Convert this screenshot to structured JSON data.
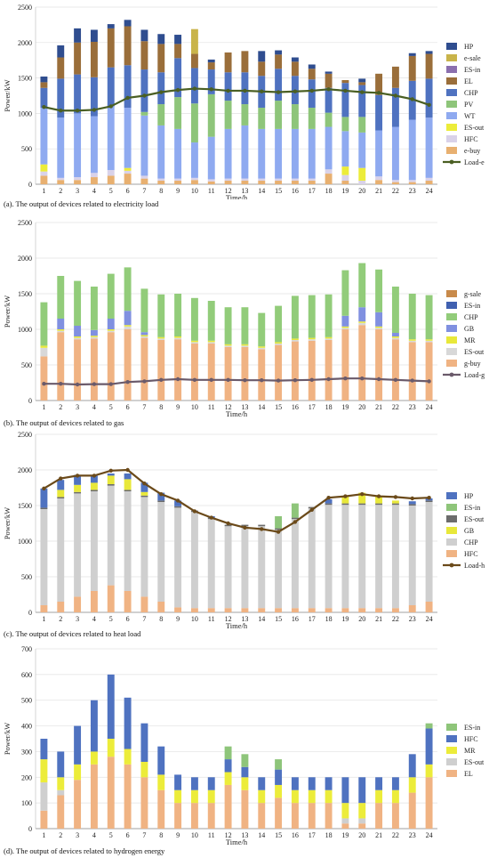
{
  "chart_data": [
    {
      "type": "bar",
      "stacked": true,
      "caption": "(a). The output of devices related to electricity load",
      "xlabel": "Time/h",
      "ylabel": "Power/kW",
      "ylim": [
        0,
        2500
      ],
      "yticks": [
        0,
        500,
        1000,
        1500,
        2000,
        2500
      ],
      "categories": [
        "1",
        "2",
        "3",
        "4",
        "5",
        "6",
        "7",
        "8",
        "9",
        "10",
        "11",
        "12",
        "13",
        "14",
        "15",
        "16",
        "17",
        "18",
        "19",
        "20",
        "21",
        "22",
        "23",
        "24"
      ],
      "legend_position": "right",
      "legend": [
        "HP",
        "e-sale",
        "ES-in",
        "EL",
        "CHP",
        "PV",
        "WT",
        "ES-out",
        "HFC",
        "e-buy",
        "Load-e"
      ],
      "series": [
        {
          "name": "e-buy",
          "color": "#e8b070",
          "values": [
            120,
            60,
            60,
            100,
            120,
            150,
            80,
            50,
            50,
            60,
            40,
            50,
            50,
            50,
            50,
            50,
            50,
            150,
            50,
            0,
            60,
            30,
            30,
            50
          ]
        },
        {
          "name": "HFC",
          "color": "#d9d2e9",
          "values": [
            60,
            30,
            40,
            60,
            80,
            40,
            40,
            30,
            30,
            30,
            30,
            30,
            30,
            30,
            30,
            30,
            30,
            60,
            80,
            50,
            50,
            30,
            30,
            40
          ]
        },
        {
          "name": "ES-out",
          "color": "#ecec3a",
          "values": [
            100,
            0,
            0,
            0,
            0,
            40,
            0,
            0,
            0,
            0,
            0,
            0,
            0,
            0,
            0,
            0,
            0,
            0,
            120,
            180,
            0,
            0,
            0,
            0
          ]
        },
        {
          "name": "WT",
          "color": "#8faaf0",
          "values": [
            800,
            850,
            900,
            800,
            900,
            850,
            850,
            750,
            700,
            500,
            600,
            700,
            750,
            700,
            700,
            700,
            700,
            600,
            500,
            500,
            650,
            750,
            850,
            850
          ]
        },
        {
          "name": "PV",
          "color": "#8ec57a",
          "values": [
            0,
            0,
            0,
            0,
            0,
            0,
            50,
            300,
            450,
            550,
            600,
            400,
            300,
            300,
            400,
            350,
            300,
            200,
            200,
            220,
            0,
            0,
            0,
            0
          ]
        },
        {
          "name": "CHP",
          "color": "#4f72c0",
          "values": [
            280,
            550,
            550,
            550,
            550,
            600,
            600,
            450,
            550,
            500,
            350,
            400,
            450,
            450,
            450,
            400,
            400,
            350,
            480,
            450,
            500,
            550,
            550,
            550
          ]
        },
        {
          "name": "EL",
          "color": "#9a6e3a",
          "values": [
            80,
            300,
            450,
            500,
            550,
            550,
            400,
            400,
            200,
            200,
            100,
            280,
            300,
            200,
            200,
            200,
            150,
            200,
            40,
            40,
            300,
            300,
            350,
            350
          ]
        },
        {
          "name": "ES-in",
          "color": "#8b6fae",
          "values": [
            0,
            0,
            0,
            0,
            0,
            0,
            0,
            0,
            0,
            0,
            0,
            0,
            0,
            0,
            0,
            0,
            0,
            0,
            0,
            0,
            0,
            0,
            0,
            0
          ]
        },
        {
          "name": "e-sale",
          "color": "#c9b44a",
          "values": [
            0,
            0,
            0,
            0,
            0,
            0,
            0,
            0,
            0,
            350,
            0,
            0,
            0,
            0,
            0,
            0,
            0,
            0,
            0,
            0,
            0,
            0,
            0,
            0
          ]
        },
        {
          "name": "HP",
          "color": "#2f4d8f",
          "values": [
            80,
            170,
            200,
            170,
            60,
            90,
            160,
            140,
            130,
            0,
            40,
            0,
            0,
            150,
            60,
            60,
            60,
            30,
            0,
            50,
            0,
            0,
            40,
            40
          ]
        }
      ],
      "line": {
        "name": "Load-e",
        "color": "#4a5f23",
        "values": [
          1090,
          1040,
          1040,
          1050,
          1100,
          1220,
          1250,
          1300,
          1330,
          1350,
          1340,
          1320,
          1320,
          1310,
          1300,
          1310,
          1320,
          1340,
          1320,
          1300,
          1290,
          1250,
          1200,
          1120
        ]
      }
    },
    {
      "type": "bar",
      "stacked": true,
      "caption": "(b). The output of devices related to gas",
      "xlabel": "Time/h",
      "ylabel": "Power/kW",
      "ylim": [
        0,
        2500
      ],
      "yticks": [
        0,
        500,
        1000,
        1500,
        2000,
        2500
      ],
      "categories": [
        "1",
        "2",
        "3",
        "4",
        "5",
        "6",
        "7",
        "8",
        "9",
        "10",
        "11",
        "12",
        "13",
        "14",
        "15",
        "16",
        "17",
        "18",
        "19",
        "20",
        "21",
        "22",
        "23",
        "24"
      ],
      "legend_position": "right",
      "legend": [
        "g-sale",
        "ES-in",
        "CHP",
        "GB",
        "MR",
        "ES-out",
        "g-buy",
        "Load-g"
      ],
      "series": [
        {
          "name": "g-buy",
          "color": "#f0b383",
          "values": [
            620,
            960,
            860,
            870,
            960,
            1000,
            880,
            850,
            860,
            800,
            800,
            750,
            750,
            720,
            780,
            830,
            840,
            850,
            1000,
            1060,
            1000,
            860,
            820,
            820
          ]
        },
        {
          "name": "ES-out",
          "color": "#d8d8d8",
          "values": [
            120,
            20,
            20,
            20,
            20,
            40,
            20,
            20,
            20,
            20,
            20,
            20,
            20,
            20,
            20,
            20,
            20,
            20,
            20,
            30,
            20,
            20,
            20,
            20
          ]
        },
        {
          "name": "MR",
          "color": "#e8e83a",
          "values": [
            30,
            20,
            20,
            20,
            20,
            20,
            20,
            20,
            20,
            20,
            20,
            20,
            20,
            20,
            20,
            20,
            20,
            20,
            20,
            20,
            20,
            20,
            20,
            20
          ]
        },
        {
          "name": "GB",
          "color": "#8090e0",
          "values": [
            0,
            150,
            150,
            80,
            150,
            200,
            40,
            0,
            0,
            0,
            0,
            0,
            0,
            0,
            0,
            0,
            0,
            0,
            150,
            200,
            200,
            50,
            0,
            0
          ]
        },
        {
          "name": "CHP",
          "color": "#92cc7a",
          "values": [
            610,
            600,
            630,
            610,
            630,
            610,
            610,
            600,
            600,
            600,
            560,
            520,
            520,
            470,
            510,
            600,
            600,
            600,
            640,
            620,
            600,
            650,
            640,
            620
          ]
        },
        {
          "name": "ES-in",
          "color": "#4060b0",
          "values": [
            0,
            0,
            0,
            0,
            0,
            0,
            0,
            0,
            0,
            0,
            0,
            0,
            0,
            0,
            0,
            0,
            0,
            0,
            0,
            0,
            0,
            0,
            0,
            0
          ]
        },
        {
          "name": "g-sale",
          "color": "#c88a4a",
          "values": [
            0,
            0,
            0,
            0,
            0,
            0,
            0,
            0,
            0,
            0,
            0,
            0,
            0,
            0,
            0,
            0,
            0,
            0,
            0,
            0,
            0,
            0,
            0,
            0
          ]
        }
      ],
      "line": {
        "name": "Load-g",
        "color": "#6a5a6a",
        "values": [
          235,
          235,
          225,
          230,
          230,
          260,
          270,
          290,
          300,
          290,
          290,
          290,
          285,
          285,
          280,
          285,
          290,
          300,
          310,
          310,
          300,
          290,
          280,
          270
        ]
      }
    },
    {
      "type": "bar",
      "stacked": true,
      "caption": "(c). The output of devices related to heat load",
      "xlabel": "Time/h",
      "ylabel": "Power/kW",
      "ylim": [
        0,
        2500
      ],
      "yticks": [
        0,
        500,
        1000,
        1500,
        2000,
        2500
      ],
      "categories": [
        "1",
        "2",
        "3",
        "4",
        "5",
        "6",
        "7",
        "8",
        "9",
        "10",
        "11",
        "12",
        "13",
        "14",
        "15",
        "16",
        "17",
        "18",
        "19",
        "20",
        "21",
        "22",
        "23",
        "24"
      ],
      "legend_position": "right",
      "legend": [
        "HP",
        "ES-in",
        "ES-out",
        "GB",
        "CHP",
        "HFC",
        "Load-h"
      ],
      "series": [
        {
          "name": "HFC",
          "color": "#f0b383",
          "values": [
            100,
            150,
            220,
            300,
            380,
            300,
            220,
            150,
            70,
            60,
            60,
            60,
            60,
            60,
            60,
            60,
            60,
            60,
            60,
            60,
            60,
            60,
            100,
            150
          ]
        },
        {
          "name": "CHP",
          "color": "#cfcfcf",
          "values": [
            1350,
            1450,
            1450,
            1400,
            1400,
            1400,
            1400,
            1400,
            1400,
            1350,
            1250,
            1150,
            1150,
            1150,
            1100,
            1250,
            1400,
            1450,
            1450,
            1450,
            1450,
            1450,
            1400,
            1400
          ]
        },
        {
          "name": "ES-out",
          "color": "#6c6c6c",
          "values": [
            20,
            20,
            20,
            20,
            20,
            20,
            20,
            20,
            20,
            20,
            20,
            20,
            20,
            20,
            20,
            20,
            20,
            20,
            20,
            20,
            20,
            20,
            20,
            20
          ]
        },
        {
          "name": "GB",
          "color": "#e8e83a",
          "values": [
            0,
            100,
            100,
            100,
            120,
            150,
            50,
            0,
            0,
            0,
            0,
            0,
            0,
            0,
            0,
            0,
            0,
            0,
            100,
            150,
            100,
            40,
            0,
            0
          ]
        },
        {
          "name": "ES-in",
          "color": "#8ec57a",
          "values": [
            0,
            0,
            0,
            0,
            0,
            0,
            0,
            0,
            0,
            0,
            0,
            0,
            0,
            0,
            170,
            200,
            0,
            0,
            0,
            0,
            0,
            0,
            0,
            0
          ]
        },
        {
          "name": "HP",
          "color": "#4f72c0",
          "values": [
            270,
            140,
            140,
            100,
            30,
            80,
            130,
            110,
            80,
            0,
            20,
            0,
            0,
            0,
            0,
            0,
            0,
            60,
            0,
            0,
            0,
            0,
            40,
            30
          ]
        }
      ],
      "line": {
        "name": "Load-h",
        "color": "#6b4a1a",
        "values": [
          1740,
          1880,
          1920,
          1920,
          1990,
          2000,
          1810,
          1660,
          1570,
          1420,
          1330,
          1250,
          1190,
          1170,
          1130,
          1270,
          1440,
          1610,
          1630,
          1660,
          1630,
          1620,
          1600,
          1610
        ]
      }
    },
    {
      "type": "bar",
      "stacked": true,
      "caption": "(d). The output of devices related to hydrogen energy",
      "xlabel": "Time/h",
      "ylabel": "Power/kW",
      "ylim": [
        0,
        700
      ],
      "yticks": [
        0,
        100,
        200,
        300,
        400,
        500,
        600,
        700
      ],
      "categories": [
        "1",
        "2",
        "3",
        "4",
        "5",
        "6",
        "7",
        "8",
        "9",
        "10",
        "11",
        "12",
        "13",
        "14",
        "15",
        "16",
        "17",
        "18",
        "19",
        "20",
        "21",
        "22",
        "23",
        "24"
      ],
      "legend_position": "right",
      "legend": [
        "ES-in",
        "HFC",
        "MR",
        "ES-out",
        "EL"
      ],
      "series": [
        {
          "name": "EL",
          "color": "#f0b383",
          "values": [
            70,
            130,
            190,
            250,
            280,
            250,
            200,
            150,
            100,
            100,
            100,
            170,
            150,
            100,
            120,
            100,
            100,
            100,
            20,
            20,
            100,
            100,
            140,
            200
          ]
        },
        {
          "name": "ES-out",
          "color": "#cfcfcf",
          "values": [
            110,
            20,
            0,
            0,
            0,
            0,
            0,
            0,
            0,
            0,
            0,
            0,
            0,
            0,
            0,
            0,
            0,
            0,
            20,
            20,
            0,
            0,
            0,
            0
          ]
        },
        {
          "name": "MR",
          "color": "#ecec3a",
          "values": [
            90,
            50,
            60,
            50,
            70,
            60,
            60,
            60,
            50,
            50,
            50,
            50,
            50,
            50,
            50,
            50,
            50,
            50,
            60,
            60,
            50,
            50,
            60,
            50
          ]
        },
        {
          "name": "HFC",
          "color": "#4f72c0",
          "values": [
            80,
            100,
            150,
            200,
            250,
            200,
            150,
            110,
            60,
            50,
            50,
            50,
            40,
            50,
            60,
            50,
            50,
            50,
            100,
            100,
            50,
            50,
            90,
            140
          ]
        },
        {
          "name": "ES-in",
          "color": "#8ec57a",
          "values": [
            0,
            0,
            0,
            0,
            0,
            0,
            0,
            0,
            0,
            0,
            0,
            50,
            50,
            0,
            40,
            0,
            0,
            0,
            0,
            0,
            0,
            0,
            0,
            20
          ]
        }
      ],
      "line": null
    }
  ]
}
